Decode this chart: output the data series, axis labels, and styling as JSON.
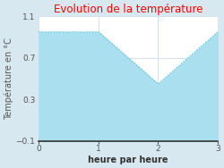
{
  "title": "Evolution de la température",
  "title_color": "#ff0000",
  "xlabel": "heure par heure",
  "ylabel": "Température en °C",
  "x": [
    0,
    1,
    2,
    3
  ],
  "y": [
    0.95,
    0.95,
    0.45,
    0.95
  ],
  "ylim": [
    -0.1,
    1.1
  ],
  "xlim": [
    0,
    3
  ],
  "yticks": [
    -0.1,
    0.3,
    0.7,
    1.1
  ],
  "xticks": [
    0,
    1,
    2,
    3
  ],
  "line_color": "#5bc8d8",
  "fill_color": "#aadff0",
  "plot_bg_color": "#ffffff",
  "fig_bg_color": "#d8e8f0",
  "title_fontsize": 8.5,
  "axis_label_fontsize": 7,
  "tick_fontsize": 6.5
}
